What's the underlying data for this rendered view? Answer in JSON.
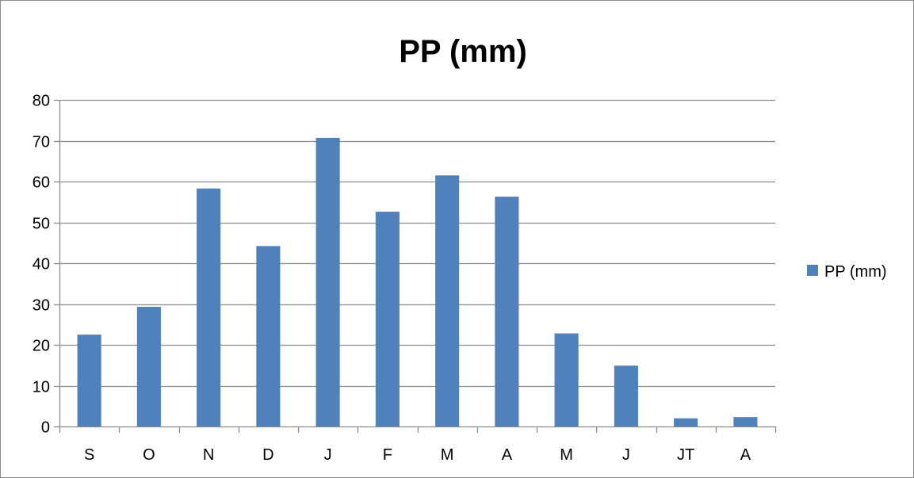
{
  "chart_data": {
    "type": "bar",
    "title": "PP (mm)",
    "xlabel": "",
    "ylabel": "",
    "categories": [
      "S",
      "O",
      "N",
      "D",
      "J",
      "F",
      "M",
      "A",
      "M",
      "J",
      "JT",
      "A"
    ],
    "series": [
      {
        "name": "PP (mm)",
        "values": [
          22.5,
          29.3,
          58.3,
          44.2,
          70.7,
          52.6,
          61.5,
          56.3,
          22.8,
          14.9,
          2.0,
          2.3
        ],
        "color": "#4f81bd"
      }
    ],
    "ylim": [
      0,
      80
    ],
    "yticks": [
      0,
      10,
      20,
      30,
      40,
      50,
      60,
      70,
      80
    ],
    "grid": true,
    "legend": "right"
  }
}
